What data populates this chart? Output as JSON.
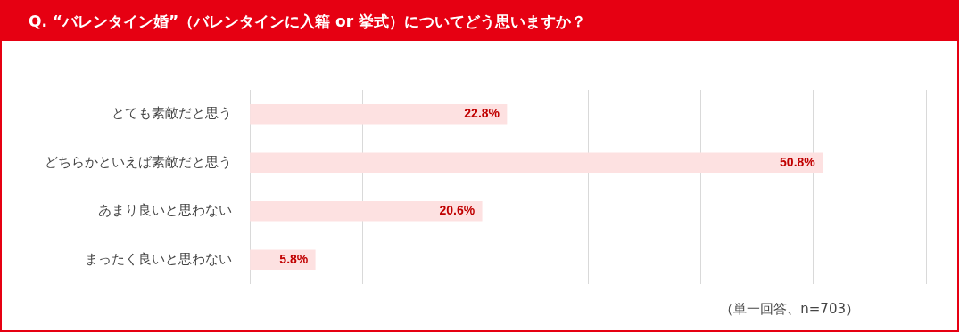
{
  "chart_data": {
    "type": "bar",
    "orientation": "horizontal",
    "title": "Q. “バレンタイン婚”（バレンタインに入籍 or 挙式）についてどう思いますか？",
    "categories": [
      "とても素敵だと思う",
      "どちらかといえば素敵だと思う",
      "あまり良いと思わない",
      "まったく良いと思わない"
    ],
    "values": [
      22.8,
      50.8,
      20.6,
      5.8
    ],
    "value_labels": [
      "22.8%",
      "50.8%",
      "20.6%",
      "5.8%"
    ],
    "color": "#fde1e1",
    "xlim": [
      0,
      60
    ],
    "xticks": [
      {
        "value": 0,
        "label": null
      },
      {
        "value": 10,
        "label": null
      },
      {
        "value": 20,
        "label": null
      },
      {
        "value": 30,
        "label": null
      },
      {
        "value": 40,
        "label": null
      },
      {
        "value": 50,
        "label": null
      },
      {
        "value": 60,
        "label": null
      }
    ],
    "tick_labels": "y",
    "grid": "x",
    "legend": false,
    "annotations": [
      "（単一回答、n=703）"
    ]
  }
}
